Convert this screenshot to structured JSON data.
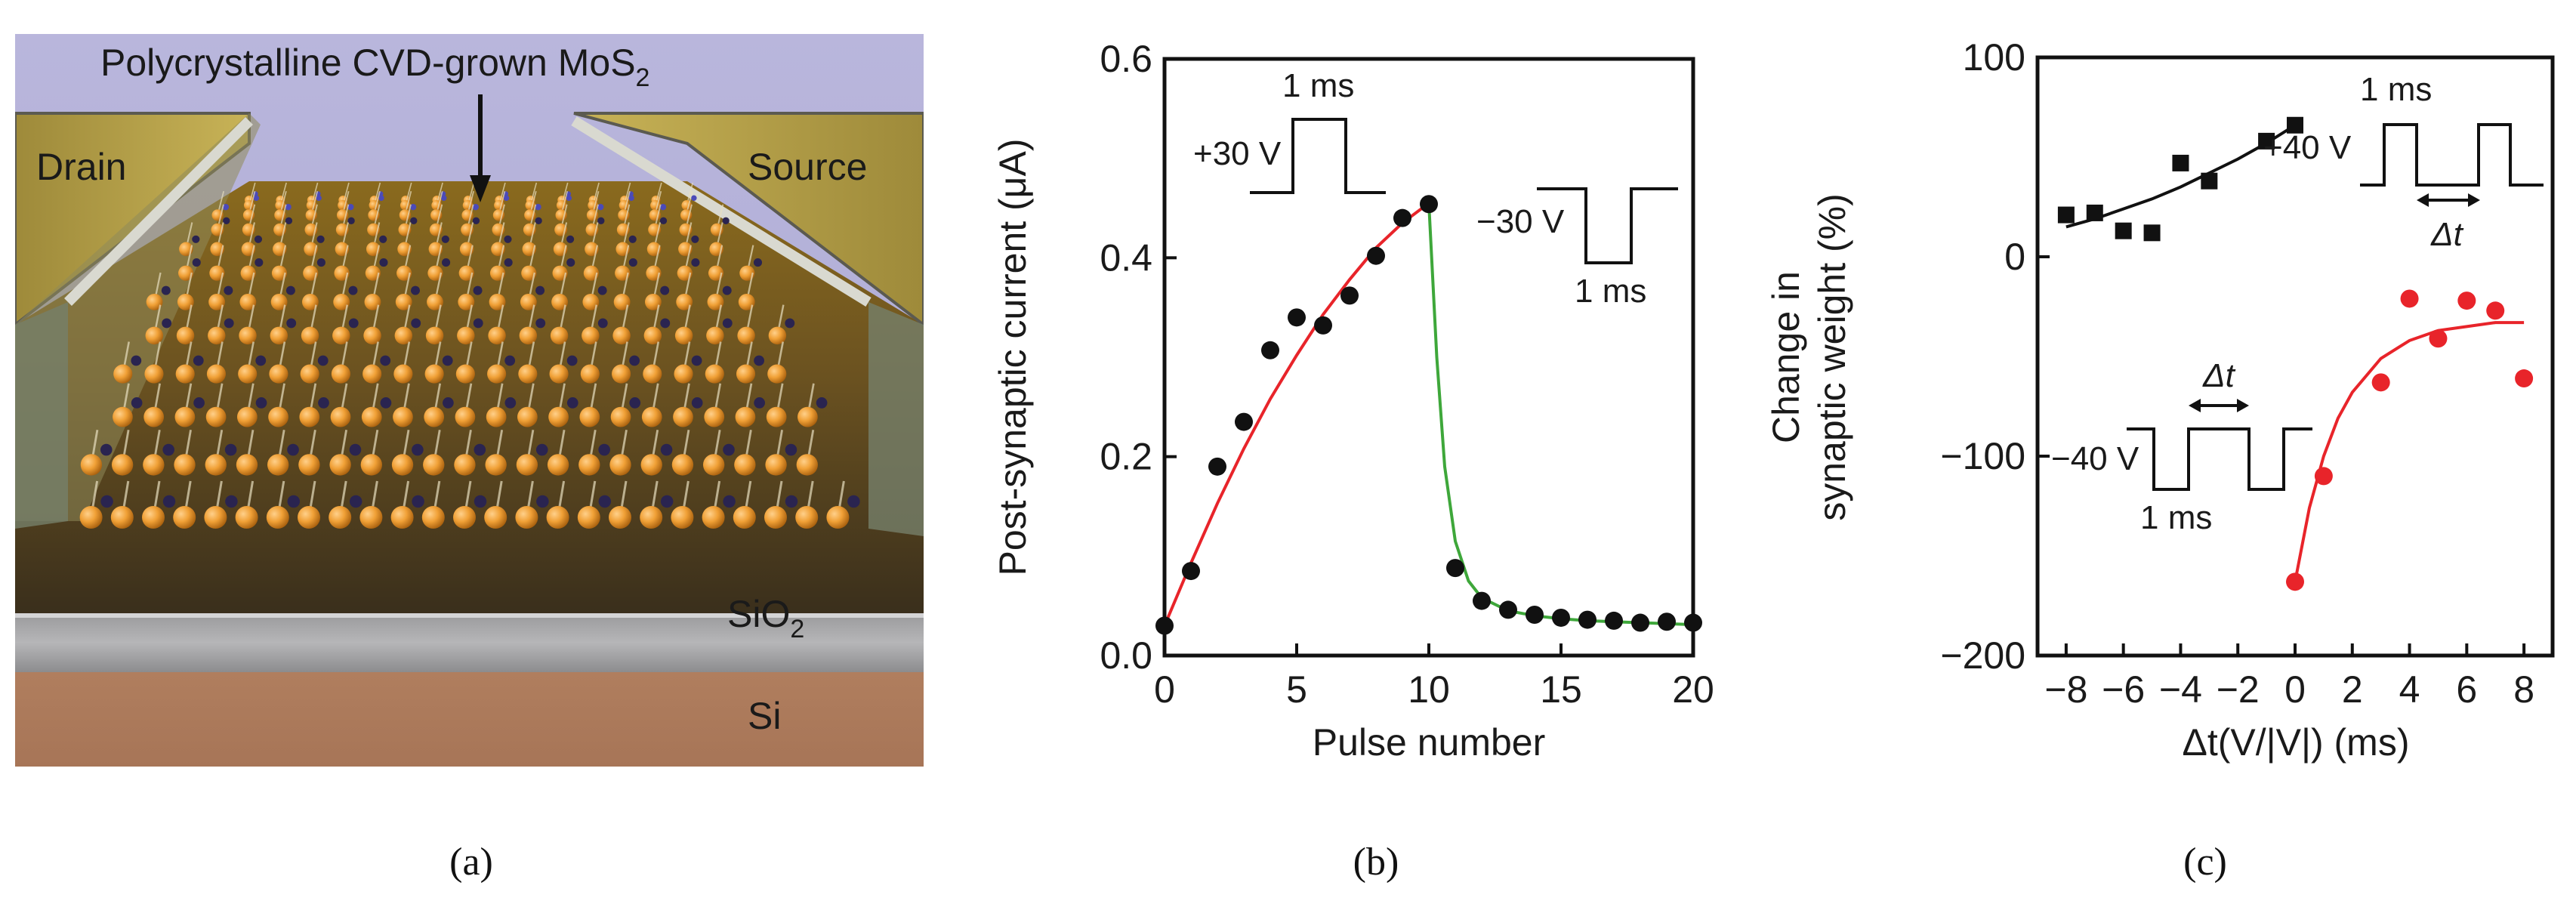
{
  "panel_a": {
    "title": "Polycrystalline CVD-grown MoS",
    "title_sub": "2",
    "drain": "Drain",
    "source": "Source",
    "sio2": "SiO",
    "sio2_sub": "2",
    "si": "Si",
    "caption": "(a)"
  },
  "chart_data": [
    {
      "id": "b",
      "type": "scatter",
      "caption": "(b)",
      "xlabel": "Pulse number",
      "ylabel": "Post-synaptic current (μA)",
      "xlim": [
        0,
        20
      ],
      "ylim": [
        0,
        0.6
      ],
      "xticks": [
        0,
        5,
        10,
        15,
        20
      ],
      "yticks": [
        0.0,
        0.2,
        0.4,
        0.6
      ],
      "ytick_labels": [
        "0.0",
        "0.2",
        "0.4",
        "0.6"
      ],
      "series": [
        {
          "name": "measured",
          "color": "#111111",
          "x": [
            0,
            1,
            2,
            3,
            4,
            5,
            6,
            7,
            8,
            9,
            10,
            11,
            12,
            13,
            14,
            15,
            16,
            17,
            18,
            19,
            20
          ],
          "y": [
            0.03,
            0.085,
            0.19,
            0.235,
            0.307,
            0.34,
            0.332,
            0.362,
            0.402,
            0.44,
            0.454,
            0.088,
            0.055,
            0.046,
            0.041,
            0.038,
            0.036,
            0.035,
            0.033,
            0.034,
            0.033
          ]
        },
        {
          "name": "potentiation fit",
          "color": "#e8242a",
          "x": [
            0,
            1,
            2,
            3,
            4,
            5,
            6,
            7,
            8,
            9,
            10
          ],
          "y": [
            0.03,
            0.093,
            0.153,
            0.208,
            0.258,
            0.302,
            0.343,
            0.378,
            0.41,
            0.435,
            0.455
          ]
        },
        {
          "name": "depression fit",
          "color": "#3ea73a",
          "x": [
            10,
            10.3,
            10.6,
            11,
            11.5,
            12,
            13,
            14,
            15,
            16,
            18,
            20
          ],
          "y": [
            0.455,
            0.3,
            0.19,
            0.115,
            0.075,
            0.058,
            0.045,
            0.04,
            0.037,
            0.035,
            0.033,
            0.031
          ]
        }
      ],
      "insets": {
        "pos_voltage": "+30 V",
        "pos_width": "1 ms",
        "neg_voltage": "−30 V",
        "neg_width": "1 ms"
      }
    },
    {
      "id": "c",
      "type": "scatter",
      "caption": "(c)",
      "xlabel": "Δt(V/|V|) (ms)",
      "ylabel_line1": "Change in",
      "ylabel_line2": "synaptic weight (%)",
      "xlim": [
        -9,
        9
      ],
      "ylim": [
        -200,
        100
      ],
      "xticks": [
        -8,
        -6,
        -4,
        -2,
        0,
        2,
        4,
        6,
        8
      ],
      "xtick_labels": [
        "−8",
        "−6",
        "−4",
        "−2",
        "0",
        "2",
        "4",
        "6",
        "8"
      ],
      "yticks": [
        -200,
        -100,
        0,
        100
      ],
      "ytick_labels": [
        "−200",
        "−100",
        "0",
        "100"
      ],
      "series": [
        {
          "name": "potentiation",
          "marker": "square",
          "color": "#111111",
          "x": [
            -8,
            -7,
            -6,
            -5,
            -4,
            -3,
            -1,
            0
          ],
          "y": [
            21,
            22,
            13,
            12,
            47,
            38,
            58,
            66
          ]
        },
        {
          "name": "depression",
          "marker": "circle",
          "color": "#e8242a",
          "x": [
            0,
            1,
            3,
            4,
            5,
            6,
            7,
            8
          ],
          "y": [
            -163,
            -110,
            -63,
            -21,
            -41,
            -22,
            -27,
            -61
          ]
        },
        {
          "name": "potentiation fit",
          "color": "#111111",
          "x": [
            -8,
            -7,
            -6,
            -5,
            -4,
            -3,
            -2,
            -1,
            0
          ],
          "y": [
            15,
            19,
            24,
            29,
            35,
            42,
            49,
            57,
            66
          ]
        },
        {
          "name": "depression fit",
          "color": "#e8242a",
          "x": [
            0,
            0.5,
            1,
            1.5,
            2,
            3,
            4,
            5,
            6,
            7,
            8
          ],
          "y": [
            -163,
            -126,
            -100,
            -81,
            -68,
            -51,
            -42,
            -37,
            -35,
            -33,
            -33
          ]
        }
      ],
      "insets": {
        "pos_voltage": "+40 V",
        "pos_width": "1 ms",
        "pos_dt": "Δt",
        "neg_voltage": "−40 V",
        "neg_width": "1 ms",
        "neg_dt": "Δt"
      }
    }
  ]
}
